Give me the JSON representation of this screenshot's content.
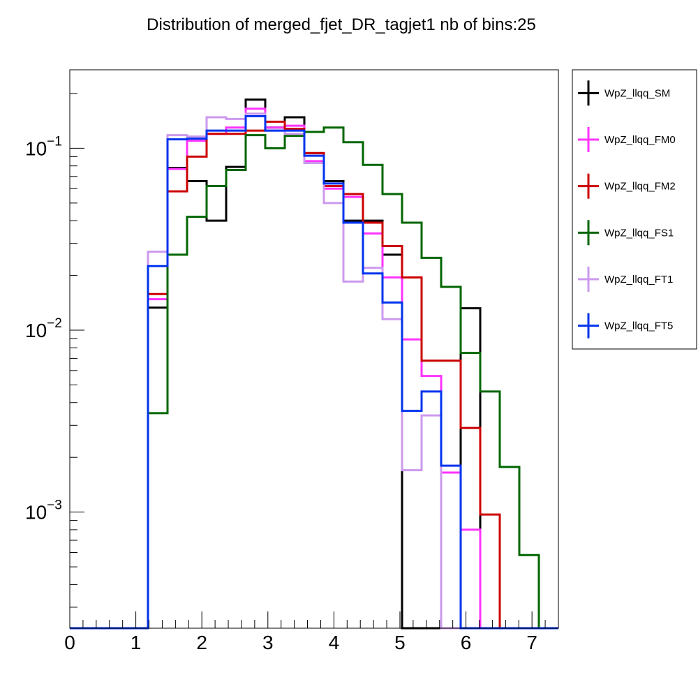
{
  "chart_data": {
    "type": "line",
    "title": "Distribution of merged_fjet_DR_tagjet1 nb of bins:25",
    "xlabel": "",
    "ylabel": "",
    "xlim": [
      0,
      7.4
    ],
    "ylim": [
      0.00023,
      0.27
    ],
    "y_scale": "log",
    "grid": false,
    "legend_position": "right",
    "x_ticks": [
      "0",
      "1",
      "2",
      "3",
      "4",
      "5",
      "6",
      "7"
    ],
    "x_tick_values": [
      0,
      1,
      2,
      3,
      4,
      5,
      6,
      7
    ],
    "y_ticks": [
      {
        "base": "10",
        "exp": "−1",
        "value": 0.1
      },
      {
        "base": "10",
        "exp": "−2",
        "value": 0.01
      },
      {
        "base": "10",
        "exp": "−3",
        "value": 0.001
      }
    ],
    "bin_edges": [
      0,
      0.296,
      0.592,
      0.888,
      1.184,
      1.48,
      1.776,
      2.072,
      2.368,
      2.664,
      2.96,
      3.256,
      3.552,
      3.848,
      4.144,
      4.44,
      4.736,
      5.032,
      5.328,
      5.624,
      5.92,
      6.216,
      6.512,
      6.808,
      7.104,
      7.4
    ],
    "series": [
      {
        "name": "WpZ_llqq_SM",
        "color": "#000000",
        "values": [
          0,
          0,
          0,
          0,
          0.0133,
          0.078,
          0.066,
          0.04,
          0.079,
          0.185,
          0.13,
          0.148,
          0.094,
          0.066,
          0.04,
          0.04,
          0.026,
          0,
          0,
          0,
          0.0132,
          0,
          0,
          0,
          0
        ]
      },
      {
        "name": "WpZ_llqq_FM0",
        "color": "#ff33ff",
        "values": [
          0,
          0,
          0,
          0,
          0.0148,
          0.077,
          0.11,
          0.12,
          0.13,
          0.165,
          0.13,
          0.133,
          0.085,
          0.06,
          0.054,
          0.034,
          0.0195,
          0.0089,
          0.0056,
          0.00165,
          0.0008,
          0,
          0,
          0,
          0
        ]
      },
      {
        "name": "WpZ_llqq_FM2",
        "color": "#cc0000",
        "values": [
          0,
          0,
          0,
          0,
          0.0158,
          0.058,
          0.09,
          0.12,
          0.12,
          0.125,
          0.14,
          0.128,
          0.094,
          0.062,
          0.056,
          0.039,
          0.029,
          0.0195,
          0.0068,
          0.0068,
          0.0029,
          0.00097,
          0,
          0,
          0
        ]
      },
      {
        "name": "WpZ_llqq_FS1",
        "color": "#006600",
        "values": [
          0,
          0,
          0,
          0,
          0.0035,
          0.026,
          0.042,
          0.062,
          0.076,
          0.118,
          0.1,
          0.117,
          0.123,
          0.13,
          0.108,
          0.081,
          0.056,
          0.039,
          0.025,
          0.0173,
          0.0075,
          0.0046,
          0.00177,
          0.00058,
          0
        ]
      },
      {
        "name": "WpZ_llqq_FT1",
        "color": "#cc99ee",
        "values": [
          0,
          0,
          0,
          0,
          0.027,
          0.118,
          0.116,
          0.148,
          0.145,
          0.155,
          0.125,
          0.12,
          0.083,
          0.05,
          0.0185,
          0.022,
          0.0115,
          0.0017,
          0.0034,
          0,
          0,
          0,
          0,
          0,
          0
        ]
      },
      {
        "name": "WpZ_llqq_FT5",
        "color": "#0033ee",
        "values": [
          0,
          0,
          0,
          0,
          0.0225,
          0.112,
          0.113,
          0.125,
          0.125,
          0.15,
          0.125,
          0.125,
          0.091,
          0.064,
          0.039,
          0.0205,
          0.0142,
          0.0036,
          0.0046,
          0.0018,
          0,
          0,
          0,
          0,
          0
        ]
      }
    ]
  }
}
